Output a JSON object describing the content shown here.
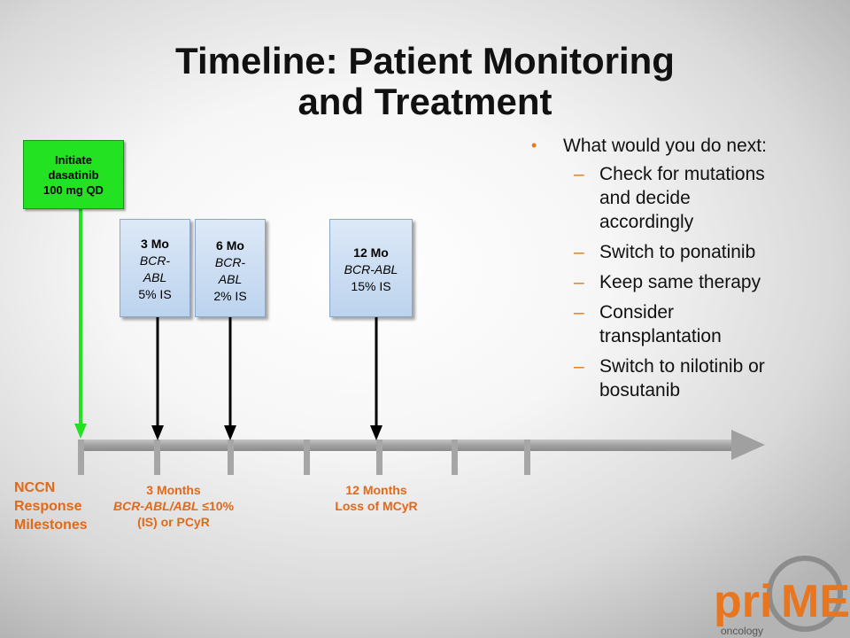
{
  "title": {
    "line1": "Timeline: Patient Monitoring",
    "line2": "and Treatment"
  },
  "start": {
    "line1": "Initiate",
    "line2": "dasatinib",
    "line3": "100 mg QD",
    "color": "#22e222"
  },
  "milestones": [
    {
      "heading": "3 Mo",
      "assay_l1": "BCR-",
      "assay_l2": "ABL",
      "value": "5% IS"
    },
    {
      "heading": "6 Mo",
      "assay_l1": "BCR-",
      "assay_l2": "ABL",
      "value": "2% IS"
    },
    {
      "heading": "12 Mo",
      "assay_l1": "BCR-ABL",
      "assay_l2": "",
      "value": "15% IS"
    }
  ],
  "question": {
    "prompt": "What would you do next:",
    "options": [
      {
        "l1": "Check for mutations",
        "l2": "and decide",
        "l3": "accordingly"
      },
      {
        "l1": "Switch to ponatinib",
        "l2": "",
        "l3": ""
      },
      {
        "l1": "Keep same therapy",
        "l2": "",
        "l3": ""
      },
      {
        "l1": "Consider",
        "l2": "transplantation",
        "l3": ""
      },
      {
        "l1": "Switch to nilotinib or",
        "l2": "bosutanib",
        "l3": ""
      }
    ]
  },
  "nccn": {
    "line1": "NCCN",
    "line2": "Response",
    "line3": "Milestones"
  },
  "response_milestones": [
    {
      "l1": "3 Months",
      "l2_italic": "BCR-ABL/ABL",
      "l2_rest": " ≤10%",
      "l3": "(IS) or PCyR"
    },
    {
      "l1": "12 Months",
      "l2_italic": "",
      "l2_rest": "Loss of MCyR",
      "l3": ""
    }
  ],
  "logo": {
    "text_pri": "pri",
    "text_me": "ME",
    "text_oncology": "oncology"
  },
  "colors": {
    "accent": "#e0691a",
    "arrow_green": "#22e222",
    "axis_gray": "#a6a6a6"
  }
}
